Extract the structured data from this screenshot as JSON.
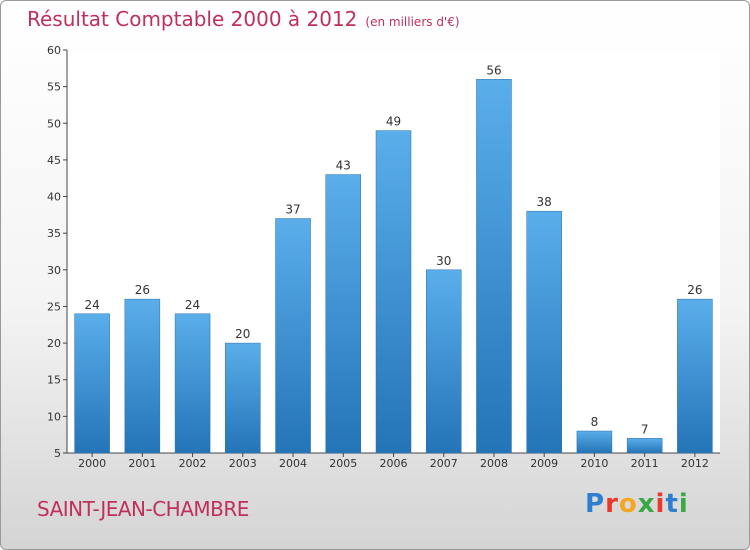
{
  "header": {
    "title": "Résultat Comptable 2000 à 2012",
    "subtitle": "(en milliers d'€)"
  },
  "footer": {
    "commune": "SAINT-JEAN-CHAMBRE",
    "logo_text": "Proxiti"
  },
  "logo_colors": [
    "#2e7fd0",
    "#e8392b",
    "#f5a623",
    "#3aa845",
    "#e8392b",
    "#2e7fd0",
    "#3aa845"
  ],
  "chart_data": {
    "type": "bar",
    "categories": [
      "2000",
      "2001",
      "2002",
      "2003",
      "2004",
      "2005",
      "2006",
      "2007",
      "2008",
      "2009",
      "2010",
      "2011",
      "2012"
    ],
    "values": [
      24,
      26,
      24,
      20,
      37,
      43,
      49,
      30,
      56,
      38,
      8,
      7,
      26
    ],
    "ylim": [
      5,
      60
    ],
    "yticks": [
      5,
      10,
      15,
      20,
      25,
      30,
      35,
      40,
      45,
      50,
      55,
      60
    ],
    "grid": false,
    "bar_color": "#3d93d8"
  }
}
